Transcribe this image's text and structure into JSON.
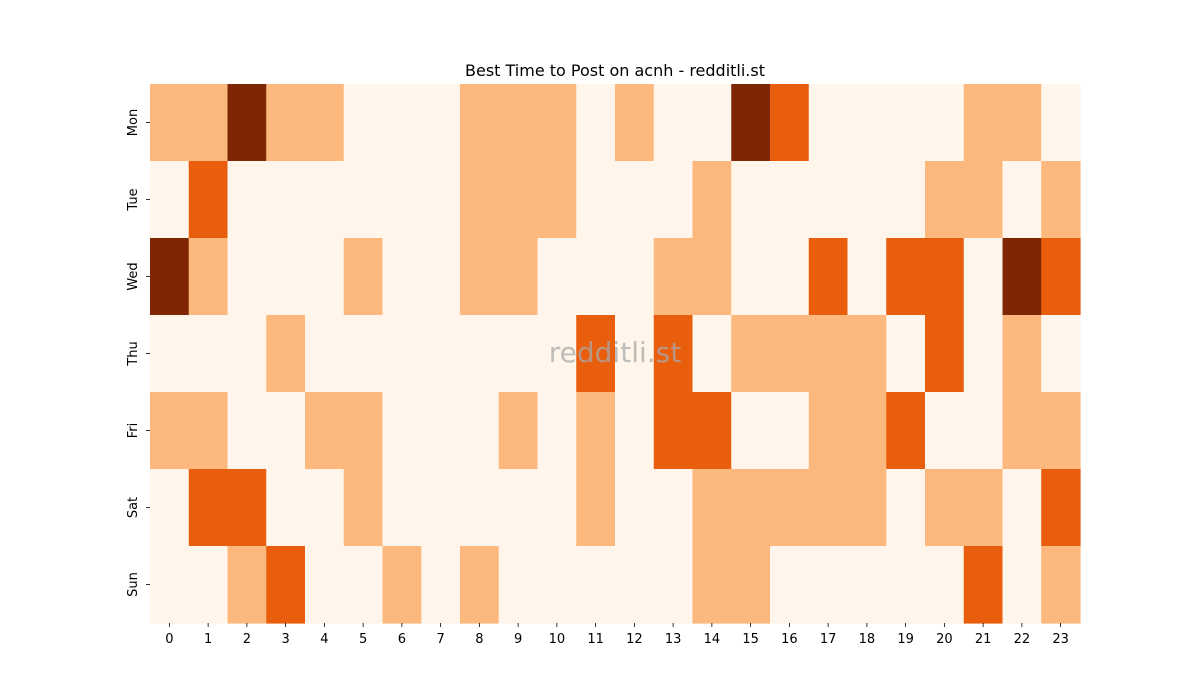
{
  "chart_data": {
    "type": "heatmap",
    "title": "Best Time to Post on acnh - redditli.st",
    "watermark": "redditli.st",
    "x_labels": [
      "0",
      "1",
      "2",
      "3",
      "4",
      "5",
      "6",
      "7",
      "8",
      "9",
      "10",
      "11",
      "12",
      "13",
      "14",
      "15",
      "16",
      "17",
      "18",
      "19",
      "20",
      "21",
      "22",
      "23"
    ],
    "y_labels": [
      "Mon",
      "Tue",
      "Wed",
      "Thu",
      "Fri",
      "Sat",
      "Sun"
    ],
    "xlabel": "",
    "ylabel": "",
    "colormap": "Oranges",
    "colors": [
      "#fff5eb",
      "#fdb87d",
      "#e95e0d",
      "#7f2704"
    ],
    "values": [
      [
        1,
        1,
        3,
        1,
        1,
        0,
        0,
        0,
        1,
        1,
        1,
        0,
        1,
        0,
        0,
        3,
        2,
        0,
        0,
        0,
        0,
        1,
        1,
        0
      ],
      [
        0,
        2,
        0,
        0,
        0,
        0,
        0,
        0,
        1,
        1,
        1,
        0,
        0,
        0,
        1,
        0,
        0,
        0,
        0,
        0,
        1,
        1,
        0,
        1
      ],
      [
        3,
        1,
        0,
        0,
        0,
        1,
        0,
        0,
        1,
        1,
        0,
        0,
        0,
        1,
        1,
        0,
        0,
        2,
        0,
        2,
        2,
        0,
        3,
        2
      ],
      [
        0,
        0,
        0,
        1,
        0,
        0,
        0,
        0,
        0,
        0,
        0,
        2,
        0,
        2,
        0,
        1,
        1,
        1,
        1,
        0,
        2,
        0,
        1,
        0
      ],
      [
        1,
        1,
        0,
        0,
        1,
        1,
        0,
        0,
        0,
        1,
        0,
        1,
        0,
        2,
        2,
        0,
        0,
        1,
        1,
        2,
        0,
        0,
        1,
        1
      ],
      [
        0,
        2,
        2,
        0,
        0,
        1,
        0,
        0,
        0,
        0,
        0,
        1,
        0,
        0,
        1,
        1,
        1,
        1,
        1,
        0,
        1,
        1,
        0,
        2
      ],
      [
        0,
        0,
        1,
        2,
        0,
        0,
        1,
        0,
        1,
        0,
        0,
        0,
        0,
        0,
        1,
        1,
        0,
        0,
        0,
        0,
        0,
        2,
        0,
        1
      ]
    ]
  }
}
